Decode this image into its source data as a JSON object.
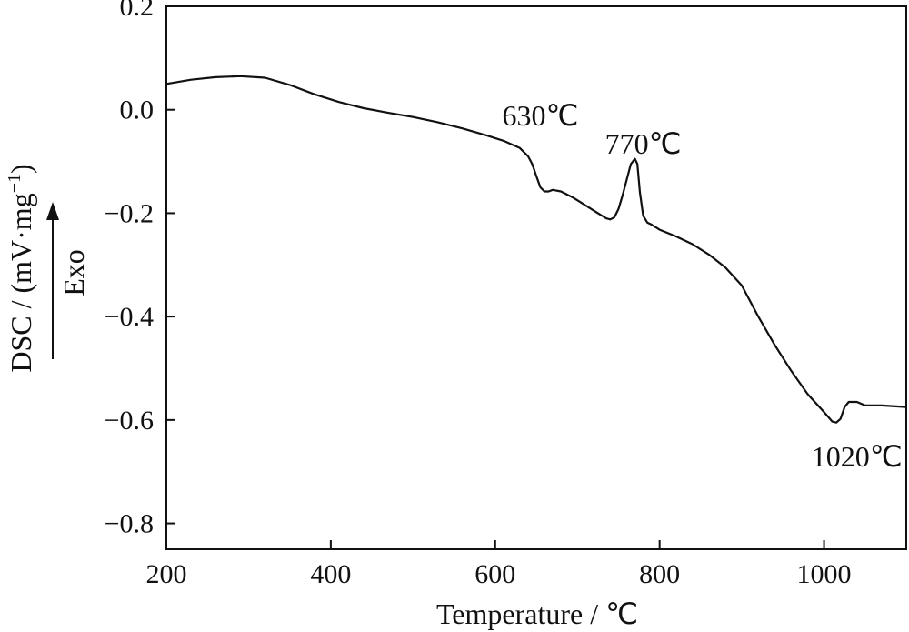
{
  "chart_data": {
    "type": "line",
    "xlabel": "Temperature / ℃",
    "ylabel": "DSC / (mV·mg",
    "ylabel_sup": "−1",
    "ylabel_close": ")",
    "exo_label": "Exo",
    "xlim": [
      200,
      1100
    ],
    "ylim": [
      -0.85,
      0.2
    ],
    "x_ticks": [
      200,
      400,
      600,
      800,
      1000
    ],
    "x_tick_labels": [
      "200",
      "400",
      "600",
      "800",
      "1000"
    ],
    "y_ticks": [
      0.2,
      0.0,
      -0.2,
      -0.4,
      -0.6,
      -0.8
    ],
    "y_tick_labels": [
      "0.2",
      "0.0",
      "−0.2",
      "−0.4",
      "−0.6",
      "−0.8"
    ],
    "grid": false,
    "series": [
      {
        "x": [
          200,
          230,
          260,
          290,
          320,
          350,
          380,
          410,
          440,
          470,
          500,
          530,
          560,
          590,
          610,
          630,
          640,
          645,
          650,
          655,
          660,
          665,
          670,
          680,
          695,
          710,
          725,
          735,
          740,
          745,
          750,
          755,
          760,
          765,
          770,
          773,
          776,
          780,
          785,
          790,
          800,
          820,
          840,
          860,
          880,
          900,
          920,
          940,
          960,
          980,
          1000,
          1010,
          1015,
          1020,
          1025,
          1030,
          1040,
          1050,
          1070,
          1100
        ],
        "y": [
          0.05,
          0.058,
          0.063,
          0.065,
          0.062,
          0.048,
          0.03,
          0.015,
          0.003,
          -0.006,
          -0.014,
          -0.024,
          -0.036,
          -0.05,
          -0.06,
          -0.074,
          -0.09,
          -0.105,
          -0.128,
          -0.15,
          -0.158,
          -0.158,
          -0.155,
          -0.158,
          -0.17,
          -0.185,
          -0.2,
          -0.21,
          -0.212,
          -0.208,
          -0.192,
          -0.165,
          -0.135,
          -0.105,
          -0.095,
          -0.105,
          -0.16,
          -0.205,
          -0.218,
          -0.222,
          -0.232,
          -0.245,
          -0.26,
          -0.28,
          -0.305,
          -0.34,
          -0.4,
          -0.455,
          -0.505,
          -0.55,
          -0.585,
          -0.603,
          -0.605,
          -0.598,
          -0.575,
          -0.565,
          -0.565,
          -0.572,
          -0.572,
          -0.575
        ]
      }
    ],
    "annotations": [
      {
        "text": "630℃",
        "x": 655,
        "y": -0.03
      },
      {
        "text": "770℃",
        "x": 780,
        "y": -0.085
      },
      {
        "text": "1020℃",
        "x": 1040,
        "y": -0.69
      }
    ]
  }
}
